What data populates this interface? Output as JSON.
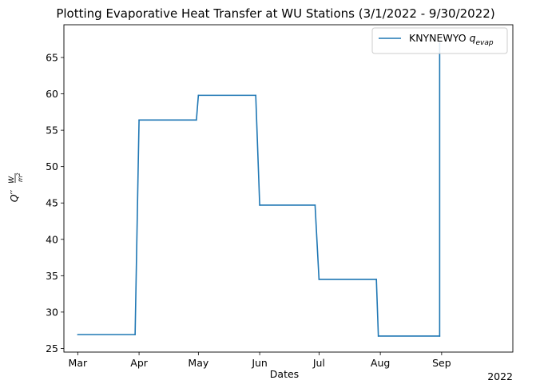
{
  "chart_data": {
    "type": "line",
    "title": "Plotting Evaporative Heat Transfer at WU Stations (3/1/2022 - 9/30/2022)",
    "xlabel": "Dates",
    "ylabel": "Q'' W/m²",
    "ylabel_parts": {
      "q": "Q",
      "prime": "′′",
      "num": "W",
      "den": "m",
      "den_sup": "2"
    },
    "x_offset_label": "2022",
    "xlim": [
      "2022-02-22",
      "2022-10-07"
    ],
    "ylim": [
      24.5,
      69.5
    ],
    "x_ticks": [
      {
        "date": "2022-03-01",
        "label": "Mar"
      },
      {
        "date": "2022-04-01",
        "label": "Apr"
      },
      {
        "date": "2022-05-01",
        "label": "May"
      },
      {
        "date": "2022-06-01",
        "label": "Jun"
      },
      {
        "date": "2022-07-01",
        "label": "Jul"
      },
      {
        "date": "2022-08-01",
        "label": "Aug"
      },
      {
        "date": "2022-09-01",
        "label": "Sep"
      }
    ],
    "y_ticks": [
      25,
      30,
      35,
      40,
      45,
      50,
      55,
      60,
      65
    ],
    "legend": {
      "position": "top-right",
      "label_main": "KNYNEWYO ",
      "label_q": "q",
      "label_sub": "evap"
    },
    "series": [
      {
        "name": "KNYNEWYO q_evap",
        "color": "#1f77b4",
        "points": [
          [
            "2022-03-01",
            26.9
          ],
          [
            "2022-03-30",
            26.9
          ],
          [
            "2022-04-01",
            56.4
          ],
          [
            "2022-04-30",
            56.4
          ],
          [
            "2022-05-01",
            59.8
          ],
          [
            "2022-05-30",
            59.8
          ],
          [
            "2022-06-01",
            44.7
          ],
          [
            "2022-06-29",
            44.7
          ],
          [
            "2022-07-01",
            34.5
          ],
          [
            "2022-07-30",
            34.5
          ],
          [
            "2022-07-31",
            26.7
          ],
          [
            "2022-08-31",
            26.7
          ],
          [
            "2022-08-31",
            67.0
          ]
        ]
      }
    ]
  }
}
